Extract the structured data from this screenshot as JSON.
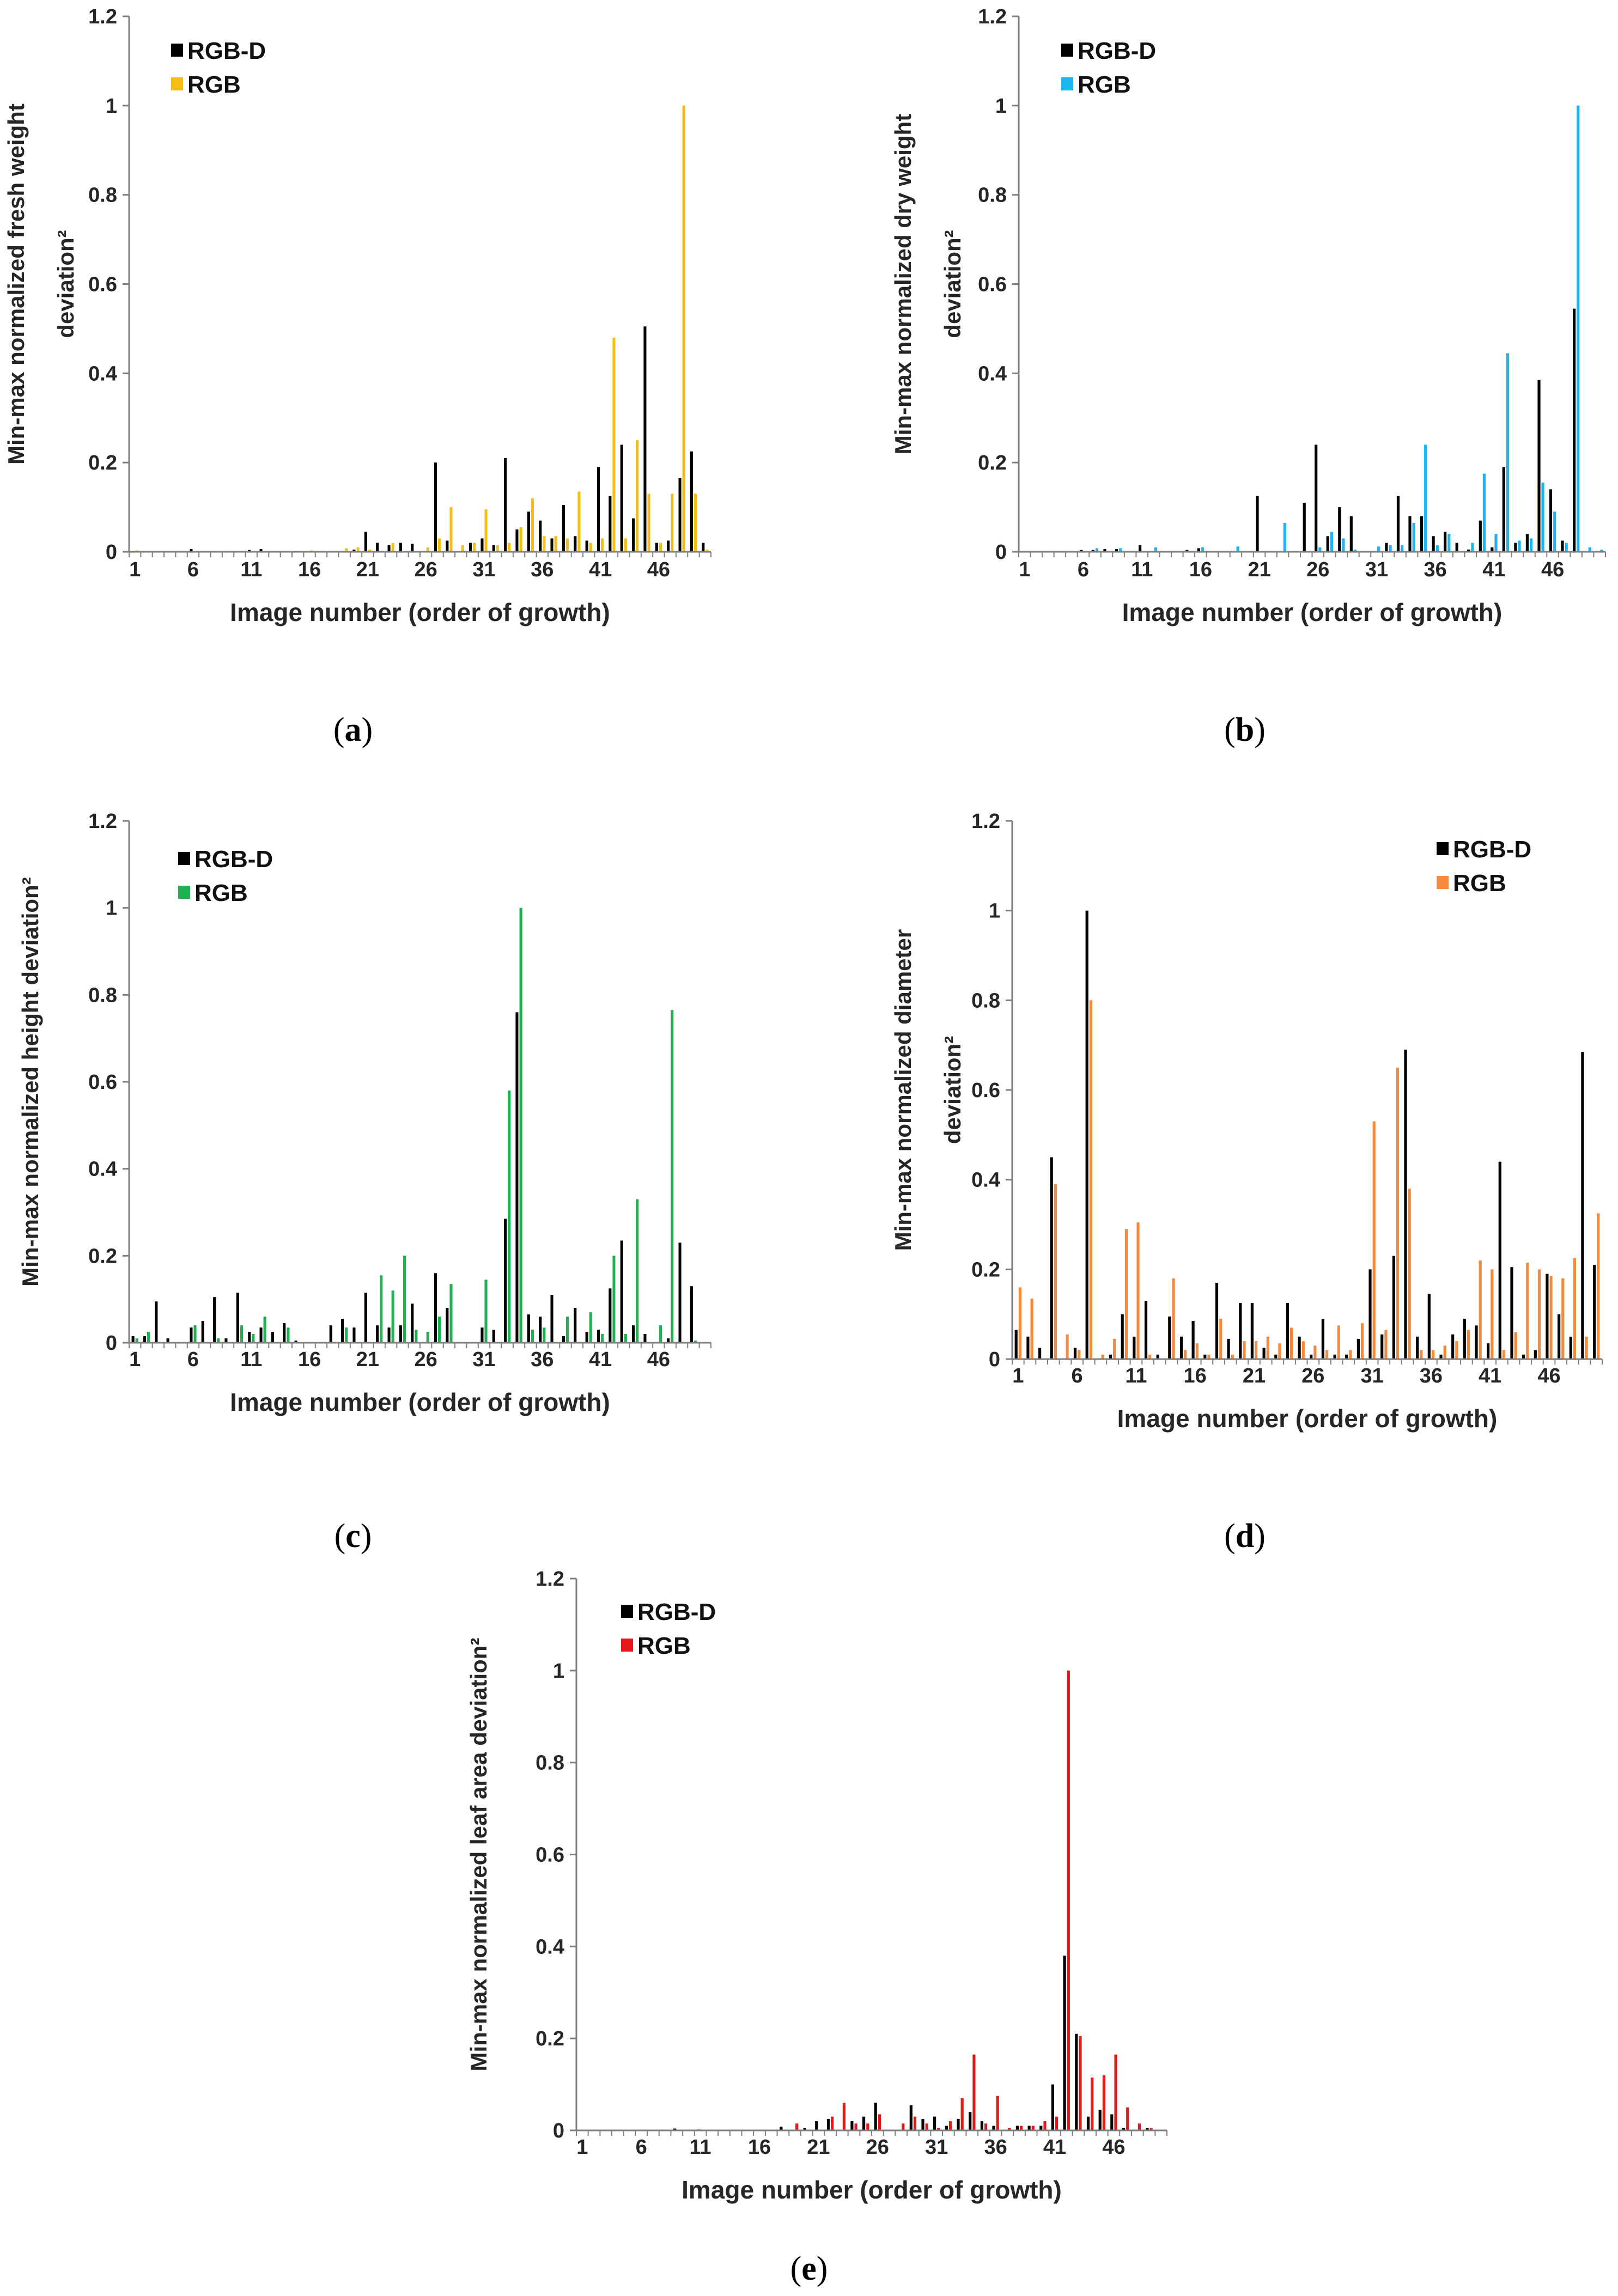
{
  "charts": [
    {
      "id": "a",
      "type": "bar",
      "caption_letter": "a",
      "ylabel_lines": [
        "Min-max normalized fresh weight",
        "deviation²"
      ],
      "xlabel": "Image number (order of growth)",
      "x_tick_labels": [
        "1",
        "6",
        "11",
        "16",
        "21",
        "26",
        "31",
        "36",
        "41",
        "46"
      ],
      "y_tick_labels": [
        "0",
        "0.2",
        "0.4",
        "0.6",
        "0.8",
        "1",
        "1.2"
      ],
      "ylim": [
        0,
        1.2
      ],
      "legend": [
        "RGB-D",
        "RGB"
      ],
      "colors": [
        "#000000",
        "#f7be16"
      ],
      "series": [
        {
          "name": "RGB-D",
          "values": [
            0.002,
            0,
            0,
            0,
            0,
            0.006,
            0,
            0,
            0,
            0,
            0.004,
            0.006,
            0,
            0,
            0.002,
            0,
            0,
            0,
            0,
            0.005,
            0.045,
            0.02,
            0.015,
            0.02,
            0.018,
            0,
            0.2,
            0.025,
            0,
            0.02,
            0.03,
            0.015,
            0.21,
            0.05,
            0.09,
            0.07,
            0.03,
            0.105,
            0.035,
            0.025,
            0.19,
            0.125,
            0.24,
            0.075,
            0.505,
            0.02,
            0.025,
            0.165,
            0.225,
            0.02
          ]
        },
        {
          "name": "RGB",
          "values": [
            0.003,
            0,
            0,
            0,
            0,
            0,
            0,
            0,
            0,
            0,
            0.001,
            0,
            0,
            0,
            0,
            0.003,
            0,
            0,
            0.008,
            0.01,
            0.005,
            0,
            0.02,
            0,
            0,
            0.01,
            0.03,
            0.1,
            0.015,
            0.02,
            0.095,
            0.015,
            0.02,
            0.055,
            0.12,
            0.035,
            0.035,
            0.03,
            0.135,
            0.02,
            0.03,
            0.48,
            0.03,
            0.25,
            0.13,
            0.02,
            0.13,
            1.0,
            0.13,
            0.005
          ]
        }
      ]
    },
    {
      "id": "b",
      "type": "bar",
      "caption_letter": "b",
      "ylabel_lines": [
        "Min-max normalized dry weight",
        "deviation²"
      ],
      "xlabel": "Image number (order of growth)",
      "x_tick_labels": [
        "1",
        "6",
        "11",
        "16",
        "21",
        "26",
        "31",
        "36",
        "41",
        "46"
      ],
      "y_tick_labels": [
        "0",
        "0.2",
        "0.4",
        "0.6",
        "0.8",
        "1",
        "1.2"
      ],
      "ylim": [
        0,
        1.2
      ],
      "legend": [
        "RGB-D",
        "RGB"
      ],
      "colors": [
        "#000000",
        "#1eb4f0"
      ],
      "series": [
        {
          "name": "RGB-D",
          "values": [
            0,
            0,
            0,
            0,
            0,
            0.004,
            0.004,
            0.006,
            0.006,
            0,
            0.015,
            0,
            0,
            0,
            0.004,
            0.008,
            0,
            0,
            0,
            0,
            0.125,
            0,
            0,
            0,
            0.11,
            0.24,
            0.035,
            0.1,
            0.08,
            0,
            0,
            0.02,
            0.125,
            0.08,
            0.08,
            0.035,
            0.045,
            0.02,
            0.005,
            0.07,
            0.01,
            0.19,
            0.02,
            0.04,
            0.385,
            0.14,
            0.025,
            0.545,
            0,
            0
          ]
        },
        {
          "name": "RGB",
          "values": [
            0,
            0,
            0,
            0,
            0,
            0,
            0.008,
            0,
            0.008,
            0,
            0,
            0.01,
            0,
            0,
            0,
            0.01,
            0,
            0,
            0.012,
            0,
            0,
            0,
            0.065,
            0,
            0,
            0.01,
            0.045,
            0.03,
            0.005,
            0,
            0.012,
            0.015,
            0.015,
            0.065,
            0.24,
            0.015,
            0.04,
            0,
            0.02,
            0.175,
            0.04,
            0.445,
            0.025,
            0.03,
            0.155,
            0.09,
            0.02,
            1.0,
            0.01,
            0.005
          ]
        }
      ]
    },
    {
      "id": "c",
      "type": "bar",
      "caption_letter": "c",
      "ylabel_lines": [
        "Min-max normalized height deviation²"
      ],
      "xlabel": "Image number (order of growth)",
      "x_tick_labels": [
        "1",
        "6",
        "11",
        "16",
        "21",
        "26",
        "31",
        "36",
        "41",
        "46"
      ],
      "y_tick_labels": [
        "0",
        "0.2",
        "0.4",
        "0.6",
        "0.8",
        "1",
        "1.2"
      ],
      "ylim": [
        0,
        1.2
      ],
      "legend": [
        "RGB-D",
        "RGB"
      ],
      "colors": [
        "#000000",
        "#1fb04f"
      ],
      "series": [
        {
          "name": "RGB-D",
          "values": [
            0.015,
            0.015,
            0.095,
            0.01,
            0,
            0.035,
            0.05,
            0.105,
            0.01,
            0.115,
            0.025,
            0.035,
            0.025,
            0.045,
            0.005,
            0,
            0,
            0.04,
            0.055,
            0.035,
            0.115,
            0.04,
            0.035,
            0.04,
            0.09,
            0,
            0.16,
            0.08,
            0,
            0,
            0.035,
            0.03,
            0.285,
            0.76,
            0.065,
            0.06,
            0.11,
            0.015,
            0.08,
            0.025,
            0.03,
            0.125,
            0.235,
            0.04,
            0.02,
            0,
            0.01,
            0.23,
            0.13,
            0
          ]
        },
        {
          "name": "RGB",
          "values": [
            0.01,
            0.025,
            0,
            0,
            0,
            0.04,
            0,
            0.01,
            0,
            0.04,
            0.02,
            0.06,
            0,
            0.035,
            0,
            0,
            0,
            0,
            0.035,
            0,
            0,
            0.155,
            0.12,
            0.2,
            0.03,
            0.025,
            0.06,
            0.135,
            0,
            0,
            0.145,
            0,
            0.58,
            1.0,
            0.03,
            0.035,
            0,
            0.06,
            0,
            0.07,
            0.02,
            0.2,
            0.02,
            0.33,
            0,
            0.04,
            0.765,
            0,
            0.005,
            0
          ]
        }
      ]
    },
    {
      "id": "d",
      "type": "bar",
      "caption_letter": "d",
      "ylabel_lines": [
        "Min-max normalized diameter",
        "deviation²"
      ],
      "xlabel": "Image number (order of growth)",
      "x_tick_labels": [
        "1",
        "6",
        "11",
        "16",
        "21",
        "26",
        "31",
        "36",
        "41",
        "46"
      ],
      "y_tick_labels": [
        "0",
        "0.2",
        "0.4",
        "0.6",
        "0.8",
        "1",
        "1.2"
      ],
      "ylim": [
        0,
        1.2
      ],
      "legend": [
        "RGB-D",
        "RGB"
      ],
      "colors": [
        "#000000",
        "#f58a3c"
      ],
      "series": [
        {
          "name": "RGB-D",
          "values": [
            0.065,
            0.05,
            0.025,
            0.45,
            0,
            0.025,
            1.0,
            0,
            0.01,
            0.1,
            0.05,
            0.13,
            0.01,
            0.095,
            0.05,
            0.085,
            0.01,
            0.17,
            0.045,
            0.125,
            0.125,
            0.025,
            0.01,
            0.125,
            0.05,
            0.01,
            0.09,
            0.01,
            0.01,
            0.045,
            0.2,
            0.055,
            0.23,
            0.69,
            0.05,
            0.145,
            0.01,
            0.055,
            0.09,
            0.075,
            0.035,
            0.44,
            0.205,
            0.01,
            0.02,
            0.19,
            0.1,
            0.05,
            0.685,
            0.21
          ]
        },
        {
          "name": "RGB",
          "values": [
            0.16,
            0.135,
            0,
            0.39,
            0.055,
            0.02,
            0.8,
            0.01,
            0.045,
            0.29,
            0.305,
            0.01,
            0,
            0.18,
            0.02,
            0.035,
            0.01,
            0.09,
            0.01,
            0.04,
            0.04,
            0.05,
            0.035,
            0.07,
            0.04,
            0.03,
            0.02,
            0.075,
            0.02,
            0.08,
            0.53,
            0.065,
            0.65,
            0.38,
            0.02,
            0.02,
            0.03,
            0.04,
            0.065,
            0.22,
            0.2,
            0.02,
            0.06,
            0.215,
            0.2,
            0.185,
            0.18,
            0.225,
            0.05,
            0.325
          ]
        }
      ]
    },
    {
      "id": "e",
      "type": "bar",
      "caption_letter": "e",
      "ylabel_lines": [
        "Min-max normalized leaf area deviation²"
      ],
      "xlabel": "Image number (order of growth)",
      "x_tick_labels": [
        "1",
        "6",
        "11",
        "16",
        "21",
        "26",
        "31",
        "36",
        "41",
        "46"
      ],
      "y_tick_labels": [
        "0",
        "0.2",
        "0.4",
        "0.6",
        "0.8",
        "1",
        "1.2"
      ],
      "ylim": [
        0,
        1.2
      ],
      "legend": [
        "RGB-D",
        "RGB"
      ],
      "colors": [
        "#000000",
        "#e21a1a"
      ],
      "series": [
        {
          "name": "RGB-D",
          "values": [
            0.001,
            0,
            0,
            0,
            0,
            0,
            0,
            0,
            0.004,
            0,
            0.002,
            0,
            0,
            0,
            0,
            0,
            0,
            0.008,
            0,
            0.005,
            0.02,
            0.025,
            0,
            0.02,
            0.03,
            0.06,
            0,
            0,
            0.055,
            0.025,
            0.03,
            0.01,
            0.025,
            0.04,
            0.02,
            0.01,
            0,
            0.01,
            0.01,
            0.01,
            0.1,
            0.38,
            0.21,
            0.03,
            0.045,
            0.035,
            0.005,
            0,
            0.005,
            0
          ]
        },
        {
          "name": "RGB",
          "values": [
            0,
            0,
            0,
            0,
            0,
            0,
            0,
            0,
            0,
            0,
            0,
            0,
            0,
            0,
            0,
            0,
            0,
            0,
            0.015,
            0,
            0,
            0.03,
            0.06,
            0.015,
            0.015,
            0.035,
            0,
            0.015,
            0.03,
            0.015,
            0.005,
            0.02,
            0.07,
            0.165,
            0.015,
            0.075,
            0.005,
            0.01,
            0.01,
            0.02,
            0.03,
            1.0,
            0.205,
            0.115,
            0.12,
            0.165,
            0.05,
            0.015,
            0.005,
            0
          ]
        }
      ]
    }
  ]
}
